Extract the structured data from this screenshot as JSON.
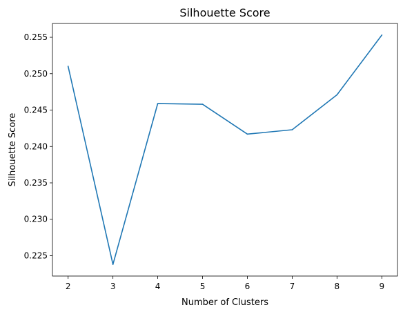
{
  "chart_data": {
    "type": "line",
    "title": "Silhouette Score",
    "xlabel": "Number of Clusters",
    "ylabel": "Silhouette Score",
    "x": [
      2,
      3,
      4,
      5,
      6,
      7,
      8,
      9
    ],
    "series": [
      {
        "values": [
          0.251,
          0.2238,
          0.2459,
          0.2458,
          0.2417,
          0.2423,
          0.2471,
          0.2553
        ]
      }
    ],
    "xlim": [
      1.65,
      9.35
    ],
    "ylim": [
      0.2222,
      0.2569
    ],
    "x_ticks": [
      2,
      3,
      4,
      5,
      6,
      7,
      8,
      9
    ],
    "x_tick_labels": [
      "2",
      "3",
      "4",
      "5",
      "6",
      "7",
      "8",
      "9"
    ],
    "y_ticks": [
      0.225,
      0.23,
      0.235,
      0.24,
      0.245,
      0.25,
      0.255
    ],
    "y_tick_labels": [
      "0.225",
      "0.230",
      "0.235",
      "0.240",
      "0.245",
      "0.250",
      "0.255"
    ],
    "grid": false,
    "line_color": "#1f77b4"
  }
}
